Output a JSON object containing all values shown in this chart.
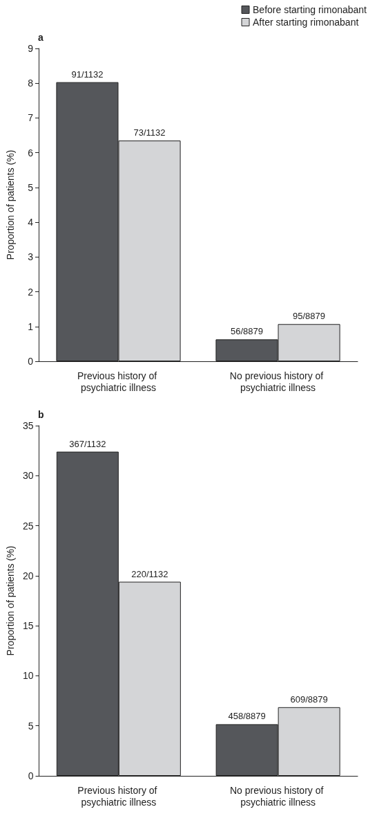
{
  "chart_data": [
    {
      "type": "bar",
      "title": "a",
      "ylabel": "Proportion of patients (%)",
      "categories": [
        "Previous history of psychiatric illness",
        "No previous history of psychiatric illness"
      ],
      "series": [
        {
          "name": "Before starting rimonabant",
          "color": "#55575b",
          "values": [
            8.03,
            0.63
          ],
          "value_labels": [
            "91/1132",
            "56/8879"
          ]
        },
        {
          "name": "After starting rimonabant",
          "color": "#d4d5d7",
          "values": [
            6.35,
            1.07
          ],
          "value_labels": [
            "73/1132",
            "95/8879"
          ]
        }
      ],
      "ylim": [
        0,
        9
      ],
      "yticks": [
        0,
        1,
        2,
        3,
        4,
        5,
        6,
        7,
        8,
        9
      ],
      "grid": false,
      "legend": "top right"
    },
    {
      "type": "bar",
      "title": "b",
      "ylabel": "Proportion of patients (%)",
      "categories": [
        "Previous history of psychiatric illness",
        "No previous history of psychiatric illness"
      ],
      "series": [
        {
          "color": "#55575b",
          "values": [
            32.4,
            5.16
          ],
          "value_labels": [
            "367/1132",
            "458/8879"
          ]
        },
        {
          "color": "#d4d5d7",
          "values": [
            19.4,
            6.86
          ],
          "value_labels": [
            "220/1132",
            "609/8879"
          ]
        }
      ],
      "ylim": [
        0,
        35
      ],
      "yticks": [
        0,
        5,
        10,
        15,
        20,
        25,
        30,
        35
      ],
      "grid": false
    }
  ]
}
